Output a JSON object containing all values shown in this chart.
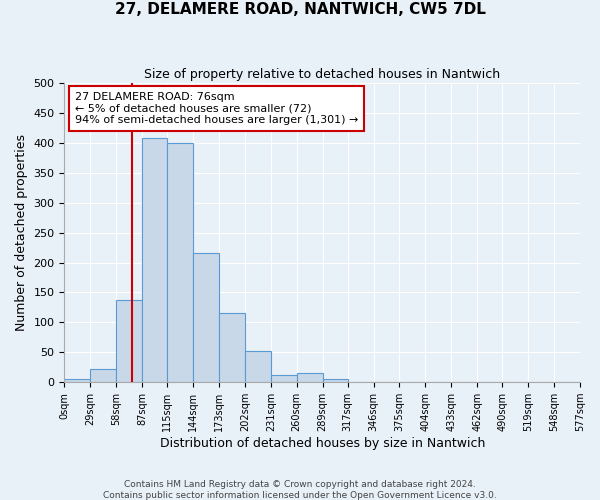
{
  "title": "27, DELAMERE ROAD, NANTWICH, CW5 7DL",
  "subtitle": "Size of property relative to detached houses in Nantwich",
  "xlabel": "Distribution of detached houses by size in Nantwich",
  "ylabel": "Number of detached properties",
  "bin_edges": [
    0,
    29,
    58,
    87,
    115,
    144,
    173,
    202,
    231,
    260,
    289,
    317,
    346,
    375,
    404,
    433,
    462,
    490,
    519,
    548,
    577
  ],
  "bin_counts": [
    5,
    22,
    138,
    408,
    400,
    216,
    115,
    52,
    12,
    16,
    5,
    1,
    1,
    0,
    1,
    0,
    1,
    0,
    1,
    1
  ],
  "bar_color": "#c8d8e8",
  "bar_edge_color": "#5b9bd5",
  "property_size": 76,
  "vline_color": "#cc0000",
  "annotation_line1": "27 DELAMERE ROAD: 76sqm",
  "annotation_line2": "← 5% of detached houses are smaller (72)",
  "annotation_line3": "94% of semi-detached houses are larger (1,301) →",
  "annotation_box_color": "#ffffff",
  "annotation_box_edge": "#cc0000",
  "ylim": [
    0,
    500
  ],
  "yticks": [
    0,
    50,
    100,
    150,
    200,
    250,
    300,
    350,
    400,
    450,
    500
  ],
  "footer1": "Contains HM Land Registry data © Crown copyright and database right 2024.",
  "footer2": "Contains public sector information licensed under the Open Government Licence v3.0.",
  "bg_color": "#e8f0f8",
  "plot_bg_color": "#e8f0f8",
  "title_fontsize": 11,
  "subtitle_fontsize": 9
}
